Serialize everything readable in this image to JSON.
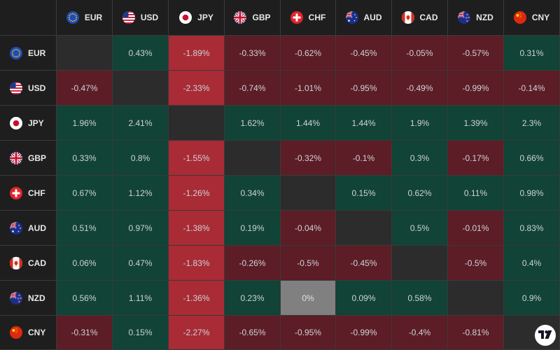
{
  "currencies": [
    "EUR",
    "USD",
    "JPY",
    "GBP",
    "CHF",
    "AUD",
    "CAD",
    "NZD",
    "CNY"
  ],
  "flags": {
    "EUR": "eu-flag-icon",
    "USD": "us-flag-icon",
    "JPY": "japan-flag-icon",
    "GBP": "uk-flag-icon",
    "CHF": "swiss-flag-icon",
    "AUD": "australia-flag-icon",
    "CAD": "canada-flag-icon",
    "NZD": "new-zealand-flag-icon",
    "CNY": "china-flag-icon"
  },
  "colors": {
    "positive": "#114337",
    "negative_mild": "#5c1d26",
    "negative_strong": "#a82b35",
    "neutral_zero": "#808080",
    "diagonal": "#2c2c2c",
    "header_bg": "#1e1e1e"
  },
  "chart_data": {
    "type": "heatmap",
    "rows": [
      "EUR",
      "USD",
      "JPY",
      "GBP",
      "CHF",
      "AUD",
      "CAD",
      "NZD",
      "CNY"
    ],
    "cols": [
      "EUR",
      "USD",
      "JPY",
      "GBP",
      "CHF",
      "AUD",
      "CAD",
      "NZD",
      "CNY"
    ],
    "cells": [
      [
        "",
        "0.43%",
        "-1.89%",
        "-0.33%",
        "-0.62%",
        "-0.45%",
        "-0.05%",
        "-0.57%",
        "0.31%"
      ],
      [
        "-0.47%",
        "",
        "-2.33%",
        "-0.74%",
        "-1.01%",
        "-0.95%",
        "-0.49%",
        "-0.99%",
        "-0.14%"
      ],
      [
        "1.96%",
        "2.41%",
        "",
        "1.62%",
        "1.44%",
        "1.44%",
        "1.9%",
        "1.39%",
        "2.3%"
      ],
      [
        "0.33%",
        "0.8%",
        "-1.55%",
        "",
        "-0.32%",
        "-0.1%",
        "0.3%",
        "-0.17%",
        "0.66%"
      ],
      [
        "0.67%",
        "1.12%",
        "-1.26%",
        "0.34%",
        "",
        "0.15%",
        "0.62%",
        "0.11%",
        "0.98%"
      ],
      [
        "0.51%",
        "0.97%",
        "-1.38%",
        "0.19%",
        "-0.04%",
        "",
        "0.5%",
        "-0.01%",
        "0.83%"
      ],
      [
        "0.06%",
        "0.47%",
        "-1.83%",
        "-0.26%",
        "-0.5%",
        "-0.45%",
        "",
        "-0.5%",
        "0.4%"
      ],
      [
        "0.56%",
        "1.11%",
        "-1.36%",
        "0.23%",
        "0%",
        "0.09%",
        "0.58%",
        "",
        "0.9%"
      ],
      [
        "-0.31%",
        "0.15%",
        "-2.27%",
        "-0.65%",
        "-0.95%",
        "-0.99%",
        "-0.4%",
        "-0.81%",
        ""
      ]
    ],
    "values": [
      [
        null,
        0.43,
        -1.89,
        -0.33,
        -0.62,
        -0.45,
        -0.05,
        -0.57,
        0.31
      ],
      [
        -0.47,
        null,
        -2.33,
        -0.74,
        -1.01,
        -0.95,
        -0.49,
        -0.99,
        -0.14
      ],
      [
        1.96,
        2.41,
        null,
        1.62,
        1.44,
        1.44,
        1.9,
        1.39,
        2.3
      ],
      [
        0.33,
        0.8,
        -1.55,
        null,
        -0.32,
        -0.1,
        0.3,
        -0.17,
        0.66
      ],
      [
        0.67,
        1.12,
        -1.26,
        0.34,
        null,
        0.15,
        0.62,
        0.11,
        0.98
      ],
      [
        0.51,
        0.97,
        -1.38,
        0.19,
        -0.04,
        null,
        0.5,
        -0.01,
        0.83
      ],
      [
        0.06,
        0.47,
        -1.83,
        -0.26,
        -0.5,
        -0.45,
        null,
        -0.5,
        0.4
      ],
      [
        0.56,
        1.11,
        -1.36,
        0.23,
        0,
        0.09,
        0.58,
        null,
        0.9
      ],
      [
        -0.31,
        0.15,
        -2.27,
        -0.65,
        -0.95,
        -0.99,
        -0.4,
        -0.81,
        null
      ]
    ]
  },
  "branding": {
    "logo": "tradingview-logo-icon"
  }
}
